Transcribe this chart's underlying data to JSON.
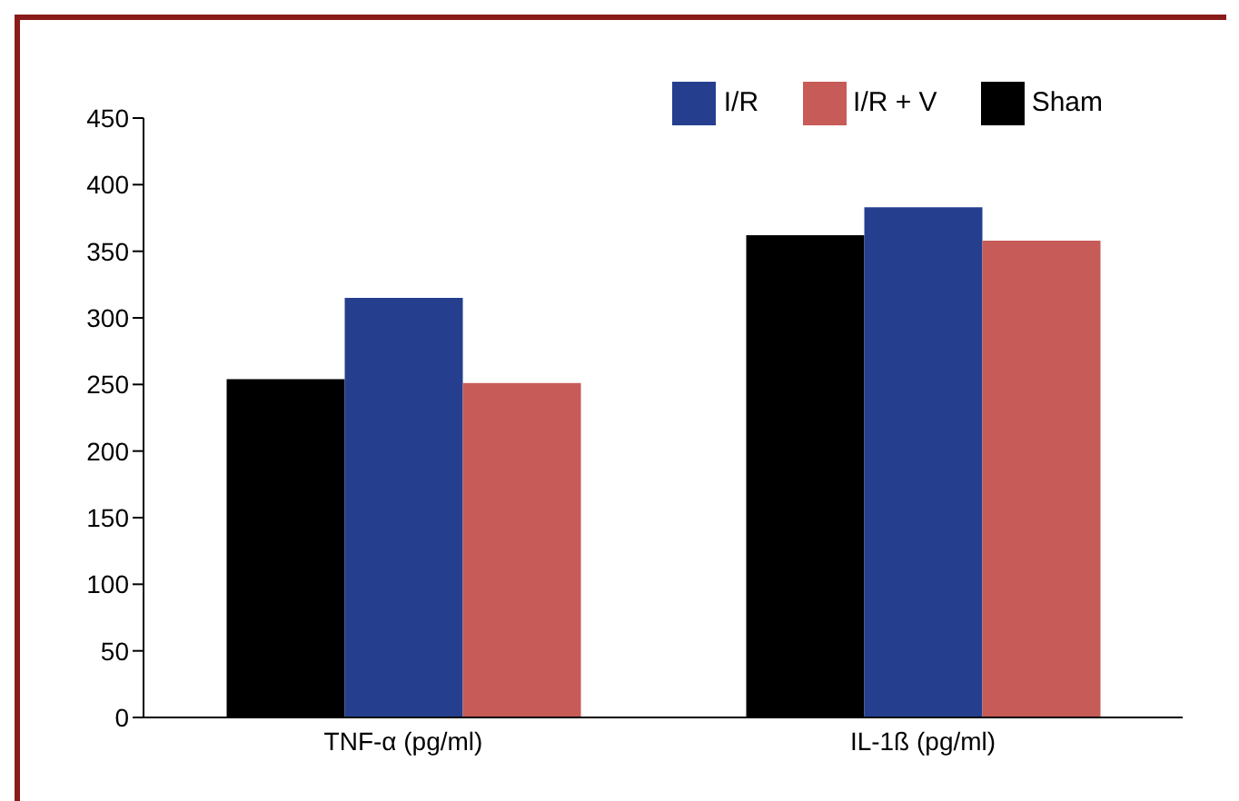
{
  "chart_data": {
    "type": "bar",
    "categories": [
      "TNF-α (pg/ml)",
      "IL-1ß (pg/ml)"
    ],
    "series": [
      {
        "name": "Sham",
        "color": "#000000",
        "values": [
          254,
          362
        ]
      },
      {
        "name": "I/R",
        "color": "#253f8e",
        "values": [
          315,
          383
        ]
      },
      {
        "name": "I/R + V",
        "color": "#c75b58",
        "values": [
          251,
          358
        ]
      }
    ],
    "ylim": [
      0,
      450
    ],
    "yticks": [
      0,
      50,
      100,
      150,
      200,
      250,
      300,
      350,
      400,
      450
    ],
    "grid": false,
    "legend": "top right"
  }
}
